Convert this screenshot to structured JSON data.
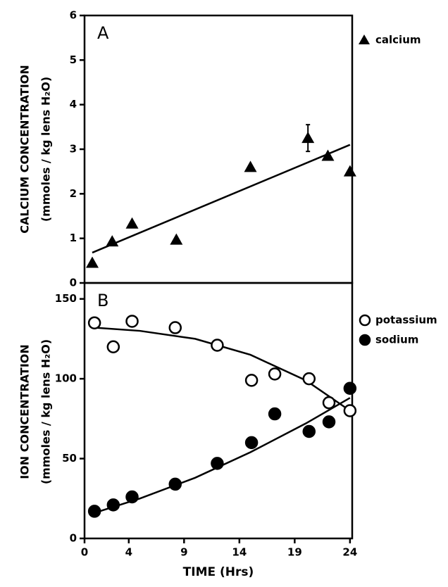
{
  "chart_data": [
    {
      "type": "scatter",
      "panel": "A",
      "ylabel": [
        "CALCIUM CONCENTRATION",
        "(mmoles / kg lens H₂O)"
      ],
      "xlim": [
        0,
        24.2
      ],
      "ylim": [
        0,
        6
      ],
      "yticks": [
        0,
        1,
        2,
        3,
        4,
        5,
        6
      ],
      "series": [
        {
          "name": "calcium",
          "marker": "triangle",
          "color": "#000000",
          "x": [
            0.7,
            2.5,
            4.3,
            8.3,
            15,
            20.2,
            22,
            24
          ],
          "values": [
            0.45,
            0.93,
            1.33,
            0.97,
            2.6,
            3.25,
            2.85,
            2.5
          ],
          "errors": [
            null,
            null,
            null,
            null,
            null,
            0.3,
            null,
            null
          ]
        }
      ],
      "fits": [
        {
          "x": [
            0.7,
            24
          ],
          "values": [
            0.68,
            3.1
          ]
        }
      ]
    },
    {
      "type": "scatter",
      "panel": "B",
      "ylabel": [
        "ION CONCENTRATION",
        "(mmoles / kg lens H₂O)"
      ],
      "xlabel": "TIME (Hrs)",
      "xlim": [
        0,
        24.2
      ],
      "ylim": [
        0,
        160
      ],
      "xticks": [
        0,
        4,
        9,
        14,
        19,
        24
      ],
      "yticks": [
        0,
        50,
        100,
        150
      ],
      "series": [
        {
          "name": "potassium",
          "marker": "open-circle",
          "color": "#000000",
          "x": [
            0.9,
            2.6,
            4.3,
            8.2,
            12,
            15.1,
            17.2,
            20.3,
            22.1,
            24
          ],
          "values": [
            135,
            120,
            136,
            132,
            121,
            99,
            103,
            100,
            85,
            80
          ]
        },
        {
          "name": "sodium",
          "marker": "circle",
          "color": "#000000",
          "x": [
            0.9,
            2.6,
            4.3,
            8.2,
            12,
            15.1,
            17.2,
            20.3,
            22.1,
            24
          ],
          "values": [
            17,
            21,
            26,
            34,
            47,
            60,
            78,
            67,
            73,
            94
          ]
        }
      ],
      "fits": [
        {
          "x": [
            0.9,
            5,
            10,
            15,
            20,
            24
          ],
          "values": [
            132,
            130,
            125,
            115,
            99,
            80
          ]
        },
        {
          "x": [
            0.9,
            5,
            10,
            15,
            20,
            24
          ],
          "values": [
            16,
            25,
            38,
            54,
            72,
            88
          ]
        }
      ]
    }
  ]
}
